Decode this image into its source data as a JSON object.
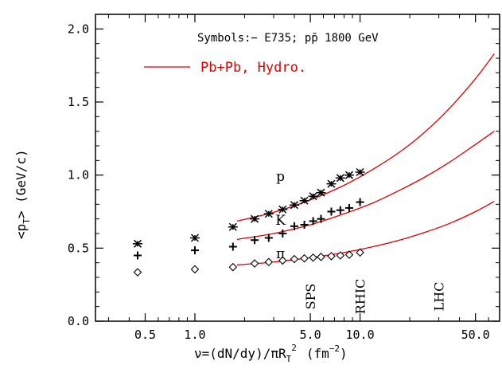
{
  "chart_data": {
    "type": "scatter",
    "title": "",
    "xlabel": "ν=(dN/dy)/πR",
    "xlabel_sub": "T",
    "xlabel_sup": "2",
    "xlabel_unit": "(fm",
    "xlabel_unit_sup": "−2",
    "xlabel_close": ")",
    "ylabel": "<p",
    "ylabel_sub": "T",
    "ylabel_rest": "> (GeV/c)",
    "xscale": "log",
    "xlim": [
      0.25,
      70
    ],
    "ylim": [
      0.0,
      2.1
    ],
    "x_ticks": [
      {
        "value": 0.5,
        "label": "0.5"
      },
      {
        "value": 1.0,
        "label": "1.0"
      },
      {
        "value": 5.0,
        "label": "5.0"
      },
      {
        "value": 10.0,
        "label": "10.0"
      },
      {
        "value": 50.0,
        "label": "50.0"
      }
    ],
    "y_ticks": [
      {
        "value": 0.0,
        "label": "0.0"
      },
      {
        "value": 0.5,
        "label": "0.5"
      },
      {
        "value": 1.0,
        "label": "1.0"
      },
      {
        "value": 1.5,
        "label": "1.5"
      },
      {
        "value": 2.0,
        "label": "2.0"
      }
    ],
    "grid": false,
    "legend": {
      "symbols_text": "Symbols:− E735; pp̄ 1800 GeV",
      "hydro_label": "Pb+Pb, Hydro.",
      "hydro_color": "#e00000"
    },
    "series": [
      {
        "name": "p",
        "marker": "asterisk",
        "x": [
          0.45,
          1.0,
          1.7,
          2.3,
          2.8,
          3.4,
          4.0,
          4.6,
          5.2,
          5.8,
          6.7,
          7.6,
          8.6,
          10.0
        ],
        "y": [
          0.53,
          0.57,
          0.645,
          0.7,
          0.735,
          0.765,
          0.795,
          0.825,
          0.855,
          0.88,
          0.94,
          0.98,
          1.0,
          1.02
        ]
      },
      {
        "name": "K",
        "marker": "plus",
        "x": [
          0.45,
          1.0,
          1.7,
          2.3,
          2.8,
          3.4,
          4.0,
          4.6,
          5.2,
          5.8,
          6.7,
          7.6,
          8.6,
          10.0
        ],
        "y": [
          0.45,
          0.485,
          0.51,
          0.555,
          0.57,
          0.6,
          0.65,
          0.66,
          0.685,
          0.7,
          0.75,
          0.76,
          0.775,
          0.815
        ]
      },
      {
        "name": "π",
        "marker": "diamond",
        "x": [
          0.45,
          1.0,
          1.7,
          2.3,
          2.8,
          3.4,
          4.0,
          4.6,
          5.2,
          5.8,
          6.7,
          7.6,
          8.6,
          10.0
        ],
        "y": [
          0.335,
          0.355,
          0.37,
          0.395,
          0.405,
          0.415,
          0.425,
          0.43,
          0.435,
          0.44,
          0.445,
          0.45,
          0.455,
          0.47
        ]
      }
    ],
    "hydro_curves": [
      {
        "x": [
          1.8,
          3,
          5,
          8,
          12,
          18,
          25,
          35,
          50,
          65
        ],
        "y": [
          0.685,
          0.745,
          0.83,
          0.93,
          1.04,
          1.17,
          1.3,
          1.46,
          1.66,
          1.83
        ]
      },
      {
        "x": [
          1.8,
          3,
          5,
          8,
          12,
          18,
          25,
          35,
          50,
          65
        ],
        "y": [
          0.56,
          0.6,
          0.66,
          0.735,
          0.81,
          0.905,
          0.99,
          1.09,
          1.21,
          1.3
        ]
      },
      {
        "x": [
          1.8,
          3,
          5,
          8,
          12,
          18,
          25,
          35,
          50,
          65
        ],
        "y": [
          0.385,
          0.405,
          0.435,
          0.47,
          0.51,
          0.56,
          0.61,
          0.67,
          0.75,
          0.82
        ]
      }
    ],
    "series_labels": [
      {
        "text": "p",
        "x": 3.3,
        "y": 0.96
      },
      {
        "text": "K",
        "x": 3.3,
        "y": 0.66
      },
      {
        "text": "π",
        "x": 3.3,
        "y": 0.43
      }
    ],
    "annotations": [
      {
        "text": "SPS",
        "x": 5.0
      },
      {
        "text": "RHIC",
        "x": 10.0
      },
      {
        "text": "LHC",
        "x": 30.0
      }
    ]
  }
}
